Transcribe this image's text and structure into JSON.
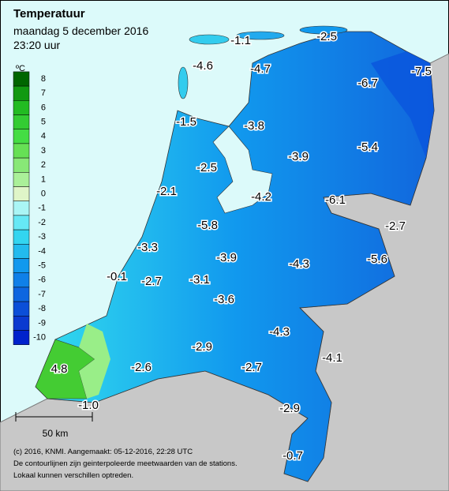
{
  "header": {
    "title": "Temperatuur",
    "date": "maandag 5 december 2016",
    "time": "23:20 uur"
  },
  "legend": {
    "unit": "ºC",
    "labels": [
      "8",
      "7",
      "6",
      "5",
      "4",
      "3",
      "2",
      "1",
      "0",
      "-1",
      "-2",
      "-3",
      "-4",
      "-5",
      "-6",
      "-7",
      "-8",
      "-9",
      "-10"
    ]
  },
  "stations": [
    "-1.1",
    "-2.5",
    "-4.6",
    "-4.7",
    "-6.7",
    "-7.5",
    "-1.5",
    "-3.8",
    "-3.9",
    "-5.4",
    "-2.5",
    "-2.1",
    "-4.2",
    "-6.1",
    "-2.7",
    "-5.8",
    "-3.3",
    "-3.9",
    "-4.3",
    "-5.6",
    "-0.1",
    "-2.7",
    "-3.1",
    "-3.6",
    "-4.3",
    "-4.1",
    "-2.9",
    "-2.7",
    "4.8",
    "-2.6",
    "-1.0",
    "-2.9",
    "-0.7"
  ],
  "scale": "50 km",
  "footer": [
    "(c) 2016, KNMI. Aangemaakt: 05-12-2016, 22:28 UTC",
    "De contourlijnen zijn geinterpoleerde meetwaarden van de stations.",
    "Lokaal kunnen verschillen optreden."
  ]
}
